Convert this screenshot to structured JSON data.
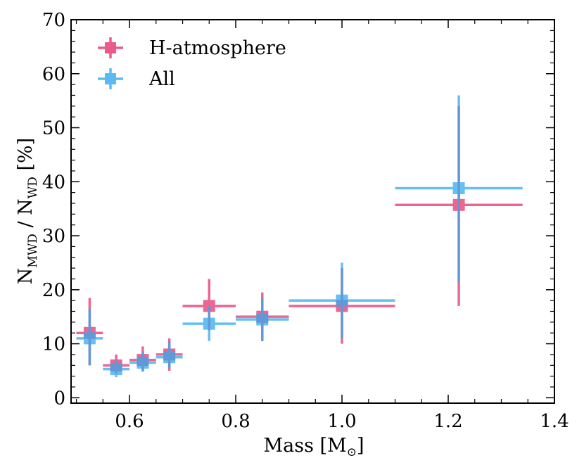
{
  "chart_data": {
    "type": "scatter",
    "title": "",
    "xlabel": "Mass [M",
    "xlabel_symbol": "⊙",
    "xlabel_close": "]",
    "ylabel_parts": {
      "n1": "N",
      "sub1": "MWD",
      "sep": " / N",
      "sub2": "WD",
      "unit": " [%]"
    },
    "xlim": [
      0.49,
      1.4
    ],
    "ylim": [
      -1,
      70
    ],
    "xticks": [
      0.6,
      0.8,
      1.0,
      1.2,
      1.4
    ],
    "xtick_labels": [
      "0.6",
      "0.8",
      "1.0",
      "1.2",
      "1.4"
    ],
    "yticks": [
      0,
      10,
      20,
      30,
      40,
      50,
      60,
      70
    ],
    "ytick_labels": [
      "0",
      "10",
      "20",
      "30",
      "40",
      "50",
      "60",
      "70"
    ],
    "legend_placement": "top-left",
    "series": [
      {
        "name": "H-atmosphere",
        "color": "#e8336b",
        "points": [
          {
            "x": 0.525,
            "xlo": 0.5,
            "xhi": 0.55,
            "y": 12.0,
            "ylo": 6.0,
            "yhi": 18.5
          },
          {
            "x": 0.575,
            "xlo": 0.55,
            "xhi": 0.6,
            "y": 6.0,
            "ylo": 4.5,
            "yhi": 8.0
          },
          {
            "x": 0.625,
            "xlo": 0.6,
            "xhi": 0.65,
            "y": 7.0,
            "ylo": 5.0,
            "yhi": 9.5
          },
          {
            "x": 0.675,
            "xlo": 0.65,
            "xhi": 0.7,
            "y": 8.0,
            "ylo": 5.0,
            "yhi": 11.0
          },
          {
            "x": 0.75,
            "xlo": 0.7,
            "xhi": 0.8,
            "y": 17.0,
            "ylo": 12.5,
            "yhi": 22.0
          },
          {
            "x": 0.85,
            "xlo": 0.8,
            "xhi": 0.9,
            "y": 15.0,
            "ylo": 10.5,
            "yhi": 19.5
          },
          {
            "x": 1.0,
            "xlo": 0.9,
            "xhi": 1.1,
            "y": 17.0,
            "ylo": 10.0,
            "yhi": 24.0
          },
          {
            "x": 1.22,
            "xlo": 1.1,
            "xhi": 1.34,
            "y": 35.7,
            "ylo": 17.0,
            "yhi": 54.0
          }
        ]
      },
      {
        "name": "All",
        "color": "#33aaee",
        "points": [
          {
            "x": 0.525,
            "xlo": 0.5,
            "xhi": 0.55,
            "y": 11.0,
            "ylo": 6.0,
            "yhi": 16.5
          },
          {
            "x": 0.575,
            "xlo": 0.55,
            "xhi": 0.6,
            "y": 5.3,
            "ylo": 3.8,
            "yhi": 7.0
          },
          {
            "x": 0.625,
            "xlo": 0.6,
            "xhi": 0.65,
            "y": 6.5,
            "ylo": 4.8,
            "yhi": 8.5
          },
          {
            "x": 0.675,
            "xlo": 0.65,
            "xhi": 0.7,
            "y": 7.5,
            "ylo": 5.5,
            "yhi": 10.5
          },
          {
            "x": 0.75,
            "xlo": 0.7,
            "xhi": 0.8,
            "y": 13.7,
            "ylo": 10.5,
            "yhi": 17.0
          },
          {
            "x": 0.85,
            "xlo": 0.8,
            "xhi": 0.9,
            "y": 14.5,
            "ylo": 10.5,
            "yhi": 18.5
          },
          {
            "x": 1.0,
            "xlo": 0.9,
            "xhi": 1.1,
            "y": 18.0,
            "ylo": 11.0,
            "yhi": 25.0
          },
          {
            "x": 1.22,
            "xlo": 1.1,
            "xhi": 1.34,
            "y": 38.8,
            "ylo": 21.5,
            "yhi": 56.0
          }
        ]
      }
    ]
  }
}
